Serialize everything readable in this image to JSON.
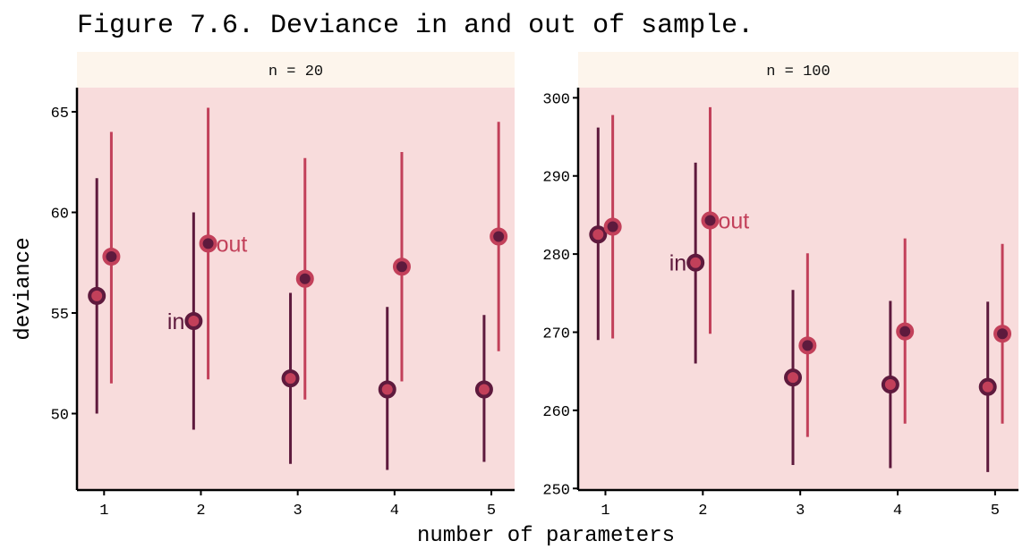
{
  "chart_data": {
    "type": "scatter",
    "title": "Figure 7.6. Deviance in and out of sample.",
    "xlabel": "number of parameters",
    "ylabel": "deviance",
    "colors": {
      "in": "#5E1A3D",
      "out": "#C2405A",
      "panel_bg": "#F8DCDC",
      "strip_bg": "#FDF5EC"
    },
    "panels": [
      {
        "strip": "n = 20",
        "ylim": [
          46.2,
          66.2
        ],
        "yticks": [
          50,
          55,
          60,
          65
        ],
        "xticks": [
          1,
          2,
          3,
          4,
          5
        ],
        "xlim": [
          0.72,
          5.24
        ],
        "series": [
          {
            "name": "in",
            "x": [
              1,
              2,
              3,
              4,
              5
            ],
            "mean": [
              55.85,
              54.6,
              51.75,
              51.2,
              51.2
            ],
            "lower": [
              50.0,
              49.2,
              47.5,
              47.2,
              47.6
            ],
            "upper": [
              61.7,
              60.0,
              56.0,
              55.3,
              54.9
            ]
          },
          {
            "name": "out",
            "x": [
              1,
              2,
              3,
              4,
              5
            ],
            "mean": [
              57.8,
              58.45,
              56.7,
              57.3,
              58.8
            ],
            "lower": [
              51.5,
              51.7,
              50.7,
              51.6,
              53.1
            ],
            "upper": [
              64.0,
              65.2,
              62.7,
              63.0,
              64.5
            ]
          }
        ],
        "annotations": [
          {
            "text": "in",
            "series": "in",
            "x": 2
          },
          {
            "text": "out",
            "series": "out",
            "x": 2
          }
        ]
      },
      {
        "strip": "n = 100",
        "ylim": [
          249.8,
          301.3
        ],
        "yticks": [
          250,
          260,
          270,
          280,
          290,
          300
        ],
        "xticks": [
          1,
          2,
          3,
          4,
          5
        ],
        "xlim": [
          0.72,
          5.24
        ],
        "series": [
          {
            "name": "in",
            "x": [
              1,
              2,
              3,
              4,
              5
            ],
            "mean": [
              282.5,
              278.9,
              264.2,
              263.3,
              263.0
            ],
            "lower": [
              269.0,
              266.0,
              253.0,
              252.6,
              252.1
            ],
            "upper": [
              296.2,
              291.7,
              275.4,
              274.0,
              273.9
            ]
          },
          {
            "name": "out",
            "x": [
              1,
              2,
              3,
              4,
              5
            ],
            "mean": [
              283.5,
              284.3,
              268.3,
              270.1,
              269.8
            ],
            "lower": [
              269.2,
              269.8,
              256.6,
              258.3,
              258.3
            ],
            "upper": [
              297.8,
              298.8,
              280.1,
              282.0,
              281.3
            ]
          }
        ],
        "annotations": [
          {
            "text": "in",
            "series": "in",
            "x": 2
          },
          {
            "text": "out",
            "series": "out",
            "x": 2
          }
        ]
      }
    ]
  }
}
